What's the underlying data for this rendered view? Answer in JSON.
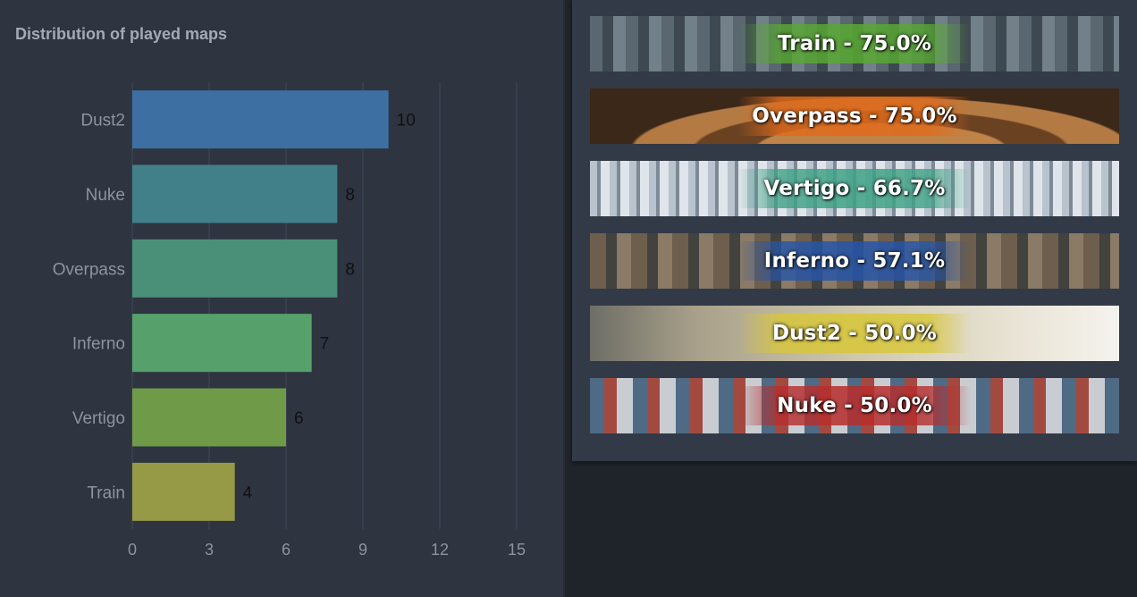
{
  "chart_data": {
    "type": "bar",
    "orientation": "horizontal",
    "title": "Distribution of played maps",
    "categories": [
      "Dust2",
      "Nuke",
      "Overpass",
      "Inferno",
      "Vertigo",
      "Train"
    ],
    "values": [
      10,
      8,
      8,
      7,
      6,
      4
    ],
    "bar_colors": [
      "#3e6fa3",
      "#428089",
      "#4a8f78",
      "#56a06c",
      "#6f9a47",
      "#969a47"
    ],
    "xlim": [
      0,
      15
    ],
    "xticks": [
      0,
      3,
      6,
      9,
      12,
      15
    ],
    "grid": true,
    "xlabel": "",
    "ylabel": ""
  },
  "banners": [
    {
      "map": "Train",
      "label": "Train - 75.0%",
      "win_rate": 75.0,
      "band_color": "#58a832"
    },
    {
      "map": "Overpass",
      "label": "Overpass - 75.0%",
      "win_rate": 75.0,
      "band_color": "#e06b1c"
    },
    {
      "map": "Vertigo",
      "label": "Vertigo - 66.7%",
      "win_rate": 66.7,
      "band_color": "#3fa286"
    },
    {
      "map": "Inferno",
      "label": "Inferno - 57.1%",
      "win_rate": 57.1,
      "band_color": "#2655a8"
    },
    {
      "map": "Dust2",
      "label": "Dust2 - 50.0%",
      "win_rate": 50.0,
      "band_color": "#d8c738"
    },
    {
      "map": "Nuke",
      "label": "Nuke - 50.0%",
      "win_rate": 50.0,
      "band_color": "#b72d2d"
    }
  ]
}
